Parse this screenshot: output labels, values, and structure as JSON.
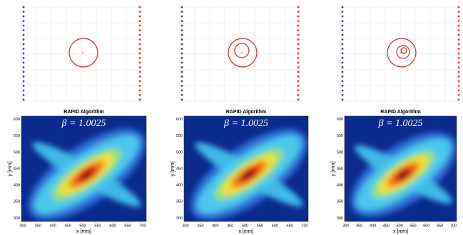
{
  "chart_data": [
    {
      "type": "heatmap",
      "title": "RAPID Algorithm",
      "annotation": "β = 1.0025",
      "x_label": "x [mm]",
      "y_label": "y [mm]",
      "xlim": [
        295,
        712
      ],
      "ylim": [
        290,
        610
      ],
      "xticks": [
        300,
        350,
        400,
        450,
        500,
        550,
        600,
        650,
        700
      ],
      "yticks": [
        300,
        350,
        400,
        450,
        500,
        550,
        600
      ]
    },
    {
      "type": "heatmap",
      "title": "RAPID Algorithm",
      "annotation": "β = 1.0025",
      "x_label": "x [mm]",
      "y_label": "y [mm]",
      "xlim": [
        295,
        712
      ],
      "ylim": [
        290,
        610
      ],
      "xticks": [
        300,
        350,
        400,
        450,
        500,
        550,
        600,
        650,
        700
      ],
      "yticks": [
        300,
        350,
        400,
        450,
        500,
        550,
        600
      ]
    },
    {
      "type": "heatmap",
      "title": "RAPID Algorithm",
      "annotation": "β = 1.0025",
      "x_label": "x [mm]",
      "y_label": "y [mm]",
      "xlim": [
        295,
        712
      ],
      "ylim": [
        290,
        610
      ],
      "xticks": [
        300,
        350,
        400,
        450,
        500,
        550,
        600,
        650,
        700
      ],
      "yticks": [
        300,
        350,
        400,
        450,
        500,
        550,
        600
      ]
    }
  ]
}
